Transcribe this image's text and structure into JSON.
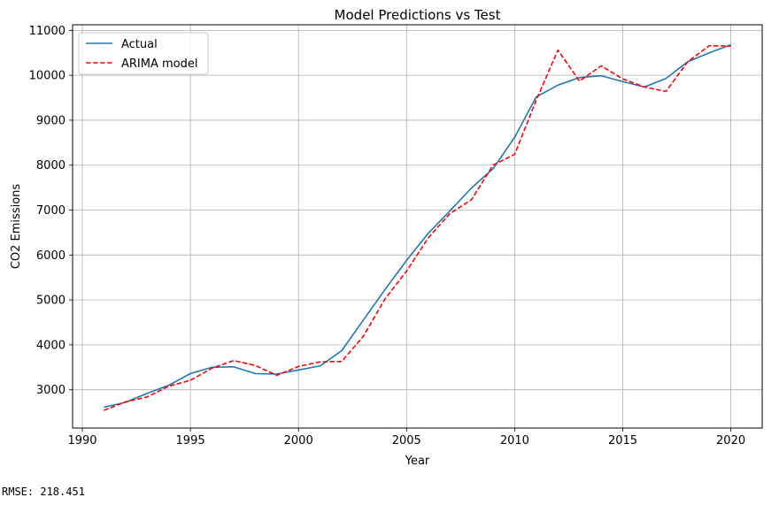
{
  "chart_data": {
    "type": "line",
    "title": "Model Predictions vs Test",
    "xlabel": "Year",
    "ylabel": "CO2 Emissions",
    "xlim": [
      1989.55,
      2021.45
    ],
    "ylim": [
      2147,
      11125
    ],
    "xticks": [
      1990,
      1995,
      2000,
      2005,
      2010,
      2015,
      2020
    ],
    "yticks": [
      3000,
      4000,
      5000,
      6000,
      7000,
      8000,
      9000,
      10000,
      11000
    ],
    "grid": true,
    "legend_position": "top-left",
    "x": [
      1991,
      1992,
      1993,
      1994,
      1995,
      1996,
      1997,
      1998,
      1999,
      2000,
      2001,
      2002,
      2003,
      2004,
      2005,
      2006,
      2007,
      2008,
      2009,
      2010,
      2011,
      2012,
      2013,
      2014,
      2015,
      2016,
      2017,
      2018,
      2019,
      2020
    ],
    "series": [
      {
        "name": "Actual",
        "color": "#1f77b4",
        "style": "solid",
        "values": [
          2610,
          2720,
          2920,
          3100,
          3360,
          3500,
          3510,
          3360,
          3350,
          3440,
          3530,
          3870,
          4550,
          5230,
          5880,
          6480,
          6980,
          7490,
          7920,
          8620,
          9520,
          9780,
          9950,
          9990,
          9860,
          9740,
          9930,
          10300,
          10500,
          10680
        ]
      },
      {
        "name": "ARIMA model",
        "color": "#ff0000",
        "style": "dashed",
        "values": [
          2540,
          2730,
          2840,
          3080,
          3210,
          3480,
          3650,
          3540,
          3320,
          3520,
          3620,
          3630,
          4190,
          5020,
          5640,
          6380,
          6920,
          7230,
          8000,
          8240,
          9450,
          10560,
          9870,
          10210,
          9920,
          9740,
          9640,
          10300,
          10660,
          10650
        ]
      }
    ]
  },
  "output": {
    "rmse_text": "RMSE: 218.451"
  }
}
